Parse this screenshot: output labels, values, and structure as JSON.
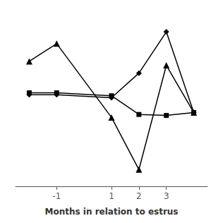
{
  "chart_data": {
    "type": "line",
    "xlabel": "Months in relation to estrus",
    "x": [
      -2,
      -1,
      1,
      2,
      3,
      4
    ],
    "series": [
      {
        "color": "#000000",
        "marker": "triangle",
        "values": [
          0.42,
          0.6,
          -0.15,
          -0.68,
          0.38,
          -0.1
        ]
      },
      {
        "color": "#000000",
        "marker": "square",
        "values": [
          0.1,
          0.1,
          0.07,
          -0.12,
          -0.13,
          -0.1
        ]
      },
      {
        "color": "#000000",
        "marker": "diamond",
        "values": [
          0.08,
          0.08,
          0.05,
          0.3,
          0.72,
          -0.1
        ]
      }
    ],
    "xlim": [
      -2.5,
      4.5
    ],
    "xticks": [
      -1,
      1,
      2,
      3
    ],
    "ylim": [
      -0.85,
      0.9
    ],
    "grid": false,
    "tick_labels": "x"
  }
}
